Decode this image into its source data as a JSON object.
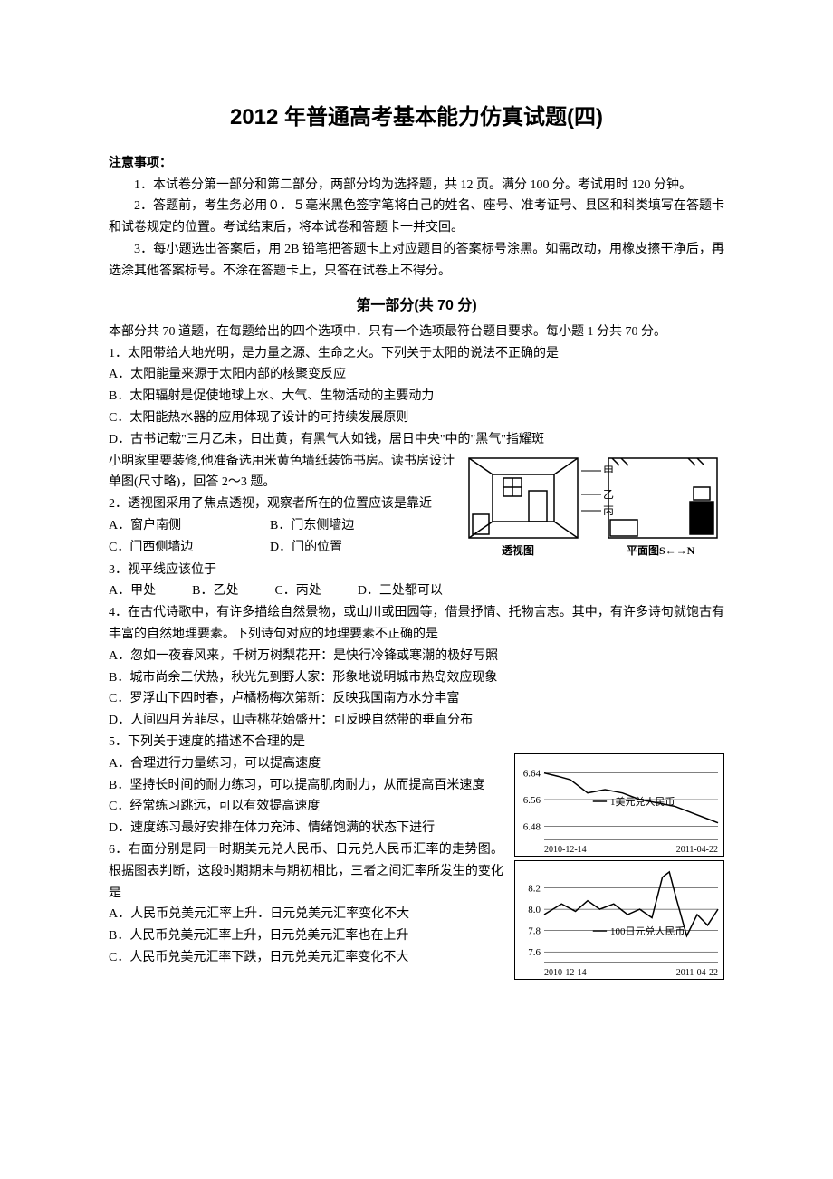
{
  "title": "2012 年普通高考基本能力仿真试题(四)",
  "notice": {
    "header": "注意事项：",
    "items": [
      "1．本试卷分第一部分和第二部分，两部分均为选择题，共 12 页。满分 100 分。考试用时 120 分钟。",
      "2．答题前，考生务必用０．５毫米黑色签字笔将自己的姓名、座号、准考证号、县区和科类填写在答题卡和试卷规定的位置。考试结束后，将本试卷和答题卡一并交回。",
      "3．每小题选出答案后，用 2B 铅笔把答题卡上对应题目的答案标号涂黑。如需改动，用橡皮擦干净后，再选涂其他答案标号。不涂在答题卡上，只答在试卷上不得分。"
    ]
  },
  "section": {
    "title": "第一部分(共 70 分)",
    "intro": "本部分共 70 道题，在每题给出的四个选项中．只有一个选项最符台题目要求。每小题 1 分共 70 分。"
  },
  "q1": {
    "stem": "1．太阳带给大地光明，是力量之源、生命之火。下列关于太阳的说法不正确的是",
    "opts": [
      "A．太阳能量来源于太阳内部的核聚变反应",
      "B．太阳辐射是促使地球上水、大气、生物活动的主要动力",
      "C．太阳能热水器的应用体现了设计的可持续发展原则",
      "D．古书记载\"三月乙未，日出黄，有黑气大如钱，居日中央\"中的\"黑气\"指耀斑"
    ]
  },
  "context2": "小明家里要装修,他准备选用米黄色墙纸装饰书房。读书房设计单图(尺寸略)，回答 2～3 题。",
  "q2": {
    "stem": "2．透视图采用了焦点透视，观察者所在的位置应该是靠近",
    "opts": [
      "A．窗户南侧",
      "B．门东侧墙边",
      "C．门西侧墙边",
      "D．门的位置"
    ]
  },
  "q3": {
    "stem": "3．视平线应该位于",
    "opts": [
      "A．甲处",
      "B．乙处",
      "C．丙处",
      "D．三处都可以"
    ]
  },
  "figure1": {
    "labels": {
      "a": "甲",
      "b": "乙",
      "c": "丙"
    },
    "captions": {
      "left": "透视图",
      "right": "平面图S←→N"
    }
  },
  "q4": {
    "stem": "4．在古代诗歌中，有许多描绘自然景物，或山川或田园等，借景抒情、托物言志。其中，有许多诗句就饱古有丰富的自然地理要素。下列诗句对应的地理要素不正确的是",
    "opts": [
      "A．忽如一夜春风来，千树万树梨花开：是快行冷锋或寒潮的极好写照",
      "B．城市尚余三伏热，秋光先到野人家：形象地说明城市热岛效应现象",
      "C．罗浮山下四时春，卢橘杨梅次第新：反映我国南方水分丰富",
      "D．人间四月芳菲尽，山寺桃花始盛开：可反映自然带的垂直分布"
    ]
  },
  "q5": {
    "stem": "5．下列关于速度的描述不合理的是",
    "opts": [
      "A．合理进行力量练习，可以提高速度",
      "B．坚持长时间的耐力练习，可以提高肌肉耐力，从而提高百米速度",
      "C．经常练习跳远，可以有效提高速度",
      "D．速度练习最好安排在体力充沛、情绪饱满的状态下进行"
    ]
  },
  "q6": {
    "stem": "6．右面分别是同一时期美元兑人民币、日元兑人民币汇率的走势图。根据图表判断，这段时期期末与期初相比，三者之间汇率所发生的变化是",
    "opts": [
      "A．人民币兑美元汇率上升．日元兑美元汇率变化不大",
      "B．人民币兑美元汇率上升，日元兑美元汇率也在上升",
      "C．人民币兑美元汇率下跌，日元兑美元汇率变化不大"
    ]
  },
  "charts": {
    "usd": {
      "yticks": [
        "6.64",
        "6.56",
        "6.48"
      ],
      "xstart": "2010-12-14",
      "xend": "2011-04-22",
      "label": "1美元兑人民币",
      "ylim": [
        6.44,
        6.68
      ],
      "points": [
        [
          0,
          6.64
        ],
        [
          8,
          6.63
        ],
        [
          15,
          6.62
        ],
        [
          25,
          6.58
        ],
        [
          35,
          6.59
        ],
        [
          45,
          6.58
        ],
        [
          55,
          6.56
        ],
        [
          65,
          6.55
        ],
        [
          75,
          6.54
        ],
        [
          85,
          6.52
        ],
        [
          95,
          6.5
        ],
        [
          100,
          6.49
        ]
      ],
      "line_color": "#000000",
      "bg_color": "#ffffff"
    },
    "jpy": {
      "yticks": [
        "8.2",
        "8.0",
        "7.8",
        "7.6"
      ],
      "xstart": "2010-12-14",
      "xend": "2011-04-22",
      "label": "100日元兑人民币",
      "ylim": [
        7.5,
        8.4
      ],
      "points": [
        [
          0,
          7.95
        ],
        [
          10,
          8.05
        ],
        [
          18,
          7.98
        ],
        [
          25,
          8.08
        ],
        [
          32,
          8.0
        ],
        [
          40,
          8.05
        ],
        [
          48,
          7.95
        ],
        [
          55,
          8.0
        ],
        [
          62,
          7.92
        ],
        [
          68,
          8.3
        ],
        [
          72,
          8.35
        ],
        [
          76,
          8.1
        ],
        [
          82,
          7.75
        ],
        [
          88,
          7.95
        ],
        [
          94,
          7.85
        ],
        [
          100,
          8.0
        ]
      ],
      "line_color": "#000000",
      "bg_color": "#ffffff"
    }
  }
}
